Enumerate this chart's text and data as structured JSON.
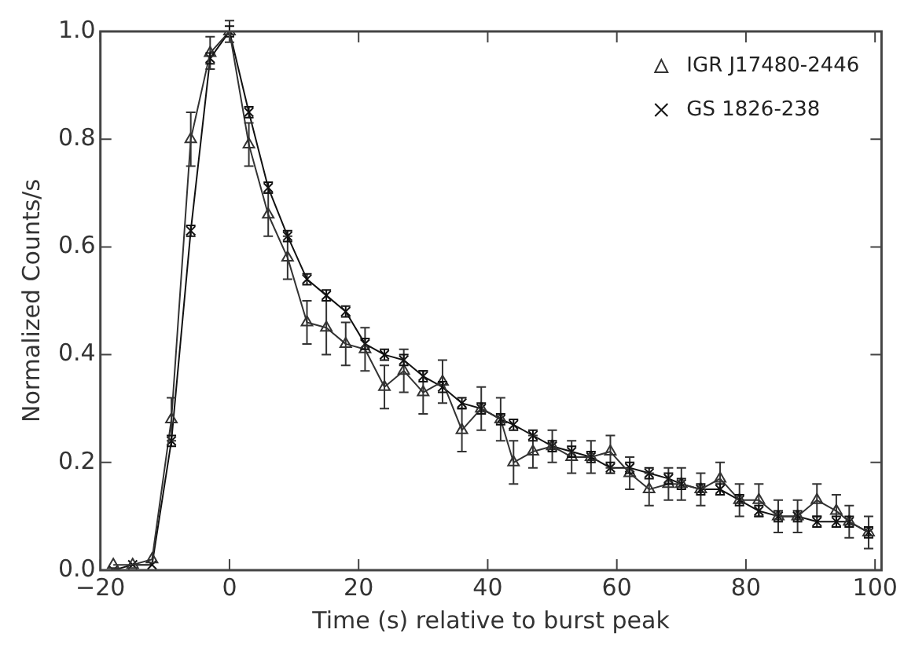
{
  "chart_data": {
    "type": "line",
    "xlabel": "Time (s) relative to burst peak",
    "ylabel": "Normalized Counts/s",
    "xlim": [
      -20,
      101
    ],
    "xticks": [
      -20,
      0,
      20,
      40,
      60,
      80,
      100
    ],
    "ylim": [
      0,
      1
    ],
    "yticks": [
      {
        "value": 0,
        "label": "0.0"
      },
      {
        "value": 0.2,
        "label": "0.2"
      },
      {
        "value": 0.4,
        "label": "0.4"
      },
      {
        "value": 0.6,
        "label": "0.6"
      },
      {
        "value": 0.8,
        "label": "0.8"
      },
      {
        "value": 1,
        "label": "1.0"
      }
    ],
    "x": [
      -18,
      -15,
      -12,
      -9,
      -6,
      -3,
      0,
      3,
      6,
      9,
      12,
      15,
      18,
      21,
      24,
      27,
      30,
      33,
      36,
      39,
      42,
      44,
      47,
      50,
      53,
      56,
      59,
      62,
      65,
      68,
      70,
      73,
      76,
      79,
      82,
      85,
      88,
      91,
      94,
      96,
      99
    ],
    "grid": false,
    "legend": "top right",
    "line_style": "solid",
    "series": [
      {
        "name": "IGR J17480-2446",
        "color": "#333333",
        "marker": "triangle",
        "values": [
          0.01,
          0.01,
          0.02,
          0.28,
          0.8,
          0.96,
          1.0,
          0.79,
          0.66,
          0.58,
          0.46,
          0.45,
          0.42,
          0.41,
          0.34,
          0.37,
          0.33,
          0.35,
          0.26,
          0.3,
          0.28,
          0.2,
          0.22,
          0.23,
          0.21,
          0.21,
          0.22,
          0.18,
          0.15,
          0.16,
          0.16,
          0.15,
          0.17,
          0.13,
          0.13,
          0.1,
          0.1,
          0.13,
          0.11,
          0.09,
          0.07
        ],
        "errors": [
          null,
          null,
          null,
          0.04,
          0.05,
          0.03,
          0.02,
          0.04,
          0.04,
          0.04,
          0.04,
          0.05,
          0.04,
          0.04,
          0.04,
          0.04,
          0.04,
          0.04,
          0.04,
          0.04,
          0.04,
          0.04,
          0.03,
          0.03,
          0.03,
          0.03,
          0.03,
          0.03,
          0.03,
          0.03,
          0.03,
          0.03,
          0.03,
          0.03,
          0.03,
          0.03,
          0.03,
          0.03,
          0.03,
          0.03,
          0.03
        ]
      },
      {
        "name": "GS 1826-238",
        "color": "#111111",
        "marker": "cross",
        "values": [
          0.0,
          0.01,
          0.01,
          0.24,
          0.63,
          0.95,
          1.0,
          0.85,
          0.71,
          0.62,
          0.54,
          0.51,
          0.48,
          0.42,
          0.4,
          0.39,
          0.36,
          0.34,
          0.31,
          0.3,
          0.28,
          0.27,
          0.25,
          0.23,
          0.22,
          0.21,
          0.19,
          0.19,
          0.18,
          0.17,
          0.16,
          0.15,
          0.15,
          0.13,
          0.11,
          0.1,
          0.1,
          0.09,
          0.09,
          0.09,
          0.07
        ],
        "errors": [
          null,
          null,
          null,
          0.01,
          0.01,
          0.01,
          0.01,
          0.01,
          0.01,
          0.01,
          0.01,
          0.01,
          0.01,
          0.01,
          0.01,
          0.01,
          0.01,
          0.01,
          0.01,
          0.01,
          0.01,
          0.01,
          0.01,
          0.01,
          0.01,
          0.01,
          0.01,
          0.01,
          0.01,
          0.01,
          0.01,
          0.01,
          0.01,
          0.01,
          0.01,
          0.01,
          0.01,
          0.01,
          0.01,
          0.01,
          0.01
        ]
      }
    ]
  }
}
